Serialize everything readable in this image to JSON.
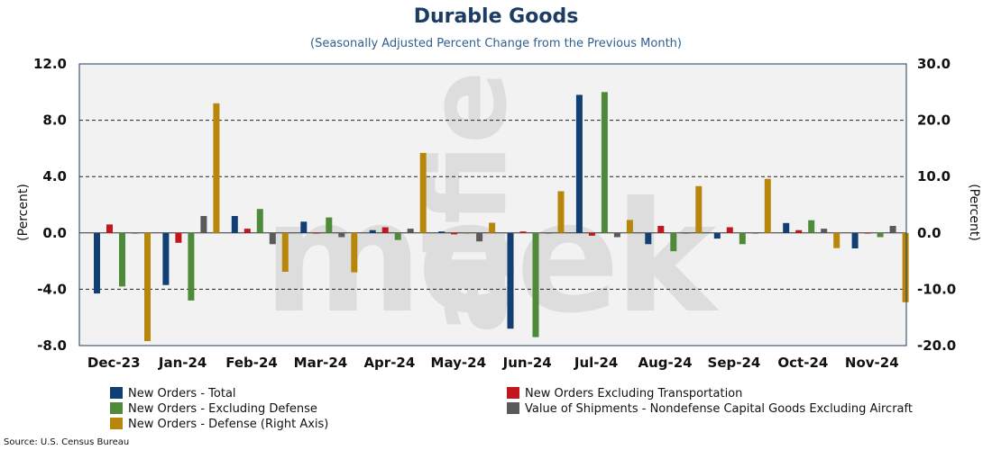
{
  "chart_data": {
    "type": "bar",
    "title": "Durable Goods",
    "subtitle": "(Seasonally Adjusted Percent Change from the Previous Month)",
    "ylabel_left": "(Percent)",
    "ylabel_right": "(Percent)",
    "left_axis": {
      "min": -8,
      "max": 12,
      "ticks": [
        12,
        8,
        4,
        0,
        -4,
        -8
      ],
      "tick_labels": [
        "12.0",
        "8.0",
        "4.0",
        "0.0",
        "-4.0",
        "-8.0"
      ]
    },
    "right_axis": {
      "min": -20,
      "max": 30,
      "ticks": [
        30,
        20,
        10,
        0,
        -10,
        -20
      ],
      "tick_labels": [
        "30.0",
        "20.0",
        "10.0",
        "0.0",
        "-10.0",
        "-20.0"
      ]
    },
    "categories": [
      "Dec-23",
      "Jan-24",
      "Feb-24",
      "Mar-24",
      "Apr-24",
      "May-24",
      "Jun-24",
      "Jul-24",
      "Aug-24",
      "Sep-24",
      "Oct-24",
      "Nov-24"
    ],
    "series": [
      {
        "name": "New Orders - Total",
        "color": "#123f73",
        "axis": "left",
        "values": [
          -4.3,
          -3.7,
          1.2,
          0.8,
          0.2,
          0.1,
          -6.8,
          9.8,
          -0.8,
          -0.4,
          0.7,
          -1.1
        ]
      },
      {
        "name": "New Orders Excluding Transportation",
        "color": "#c3161c",
        "axis": "left",
        "values": [
          0.6,
          -0.7,
          0.3,
          0.0,
          0.4,
          -0.1,
          0.1,
          -0.2,
          0.5,
          0.4,
          0.2,
          0.0
        ]
      },
      {
        "name": "New Orders - Excluding Defense",
        "color": "#4f8a3a",
        "axis": "left",
        "values": [
          -3.8,
          -4.8,
          1.7,
          1.1,
          -0.5,
          0.0,
          -7.4,
          10.0,
          -1.3,
          -0.8,
          0.9,
          -0.3
        ]
      },
      {
        "name": "Value of Shipments - Nondefense Capital Goods Excluding Aircraft",
        "color": "#5a5a5a",
        "axis": "left",
        "values": [
          0.0,
          1.2,
          -0.8,
          -0.3,
          0.3,
          -0.6,
          0.0,
          -0.3,
          0.0,
          0.0,
          0.3,
          0.5
        ]
      },
      {
        "name": "New Orders - Defense (Right Axis)",
        "color": "#b8860b",
        "axis": "right",
        "values": [
          -19.2,
          23.0,
          -6.9,
          -7.0,
          14.2,
          1.8,
          7.4,
          2.3,
          8.3,
          9.6,
          -2.7,
          -12.3
        ]
      }
    ],
    "grid": "horizontal dashed",
    "legend_position": "bottom"
  },
  "legend": {
    "items": [
      {
        "label": "New Orders - Total",
        "color": "#123f73"
      },
      {
        "label": "New Orders Excluding Transportation",
        "color": "#c3161c"
      },
      {
        "label": "New Orders - Excluding Defense",
        "color": "#4f8a3a"
      },
      {
        "label": "Value of Shipments - Nondefense Capital Goods Excluding Aircraft",
        "color": "#5a5a5a"
      },
      {
        "label": "New Orders - Defense (Right Axis)",
        "color": "#b8860b"
      }
    ]
  },
  "source": "Source: U.S. Census Bureau",
  "watermark": "alfie meek"
}
